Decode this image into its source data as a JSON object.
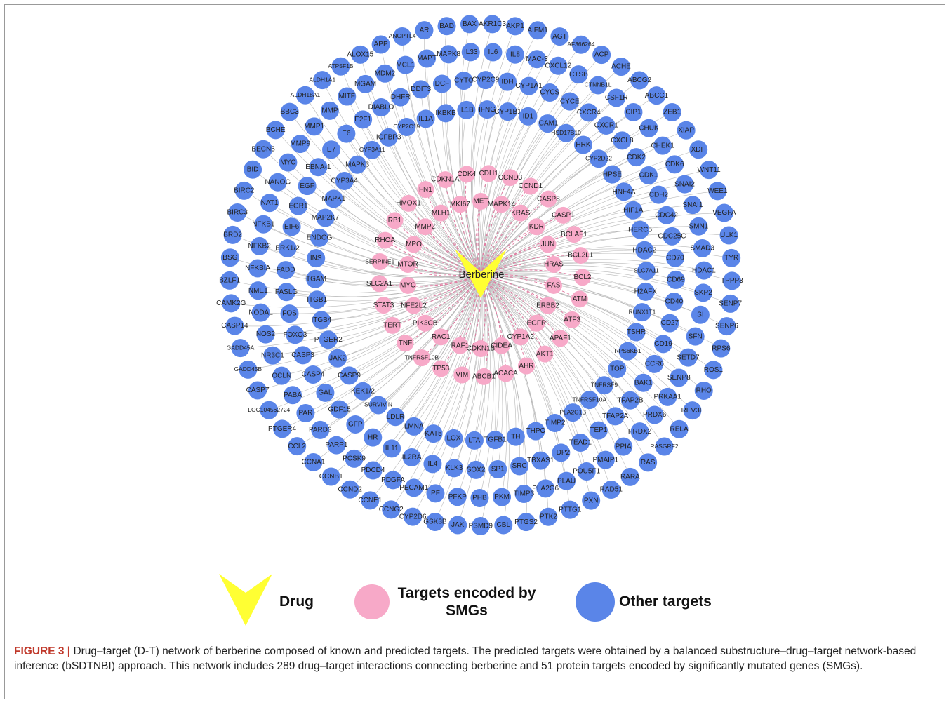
{
  "network": {
    "drug": "Berberine",
    "smg_targets": [
      [
        "CDK4",
        "CDH1",
        "CCND3",
        "CCND1",
        "CASP8",
        "CASP1",
        "BCLAF1",
        "BCL2L1",
        "BCL2",
        "ATM",
        "ATF3",
        "APAF1",
        "AKT1",
        "AHR",
        "ACACA",
        "ABCB1",
        "VIM",
        "TP53",
        "TNFRSF10B",
        "TNF",
        "TERT",
        "STAT3",
        "SLC2A1",
        "SERPINE1",
        "RHOA",
        "RB1",
        "HMOX1",
        "FN1",
        "CDKN1A"
      ],
      [
        "MET",
        "MAPK14",
        "KRAS",
        "KDR",
        "JUN",
        "HRAS",
        "FAS",
        "ERBB2",
        "EGFR",
        "CYP1A2",
        "CIDEA",
        "CDKN1B",
        "RAF1",
        "RAC1",
        "PIK3CB",
        "NFE2L2",
        "MYC",
        "MTOR",
        "MPO",
        "MMP2",
        "MLH1",
        "MKI67"
      ]
    ],
    "other_targets": [
      [
        "AR",
        "BAD",
        "BAX",
        "AKR1C3",
        "AKP1",
        "AIFM1",
        "AGT",
        "AF366264",
        "ACP",
        "ACHE",
        "ABCG2",
        "ABCC1",
        "ZEB1",
        "XIAP",
        "XDH",
        "WNT11",
        "WEE1",
        "VEGFA",
        "ULK1",
        "TYR",
        "TPPP3",
        "SENP7",
        "SENP6",
        "RPS6",
        "ROS1",
        "RHO",
        "REV3L",
        "RELA",
        "RASGRF2",
        "RAS",
        "RARA",
        "RAD51",
        "PXN",
        "PTTG1",
        "PTK2",
        "PTGS2",
        "CBL",
        "PSMD9",
        "JAK",
        "GSK3B",
        "CYP2D6",
        "CCNG2",
        "CCNE1",
        "CCND2",
        "CCNB1",
        "CCNA1",
        "CCL2",
        "PTGER4",
        "LOC104562724",
        "CASP7",
        "GADD45B",
        "GADD45A",
        "CASP14",
        "CAMK2G",
        "BZLF1",
        "BSG",
        "BRD2",
        "BIRC3",
        "BIRC2",
        "BID",
        "BECN5",
        "BCHE",
        "BBC3",
        "ALDH18A1",
        "ALDH1A1",
        "ATP5F1B",
        "ALOX15",
        "APP",
        "ANGPTL4"
      ],
      [
        "MAPT",
        "MAPK8",
        "IL33",
        "IL6",
        "IL8",
        "MAC-3",
        "CXCL12",
        "CTSB",
        "CTNNB1L",
        "CSF1R",
        "CIP1",
        "CHUK",
        "CHEK1",
        "CDK6",
        "SNAI2",
        "SNAI1",
        "SMN1",
        "SMAD3",
        "HDAC1",
        "SKP2",
        "SI",
        "SFN",
        "SETD7",
        "SENP8",
        "PRKAA1",
        "PRDX6",
        "PRDX2",
        "PPIA",
        "PMAIP1",
        "POU5F1",
        "PLAU",
        "PLA2G6",
        "TIMP3",
        "PKM",
        "PHB",
        "PFKP",
        "PF",
        "PECAM1",
        "PDGFA",
        "PDCD4",
        "PCSK9",
        "PARP1",
        "PARD3",
        "PAR",
        "PABA",
        "OCLN",
        "NR3C1",
        "NOS2",
        "NODAL",
        "NME1",
        "NFKBIA",
        "NFKB2",
        "NFKB1",
        "NAT1",
        "NANOG",
        "MYC",
        "MMP9",
        "MMP1",
        "MMP",
        "MITF",
        "MGAM",
        "MDM2",
        "MCL1"
      ],
      [
        "CYTC",
        "CYP2C9",
        "IDH",
        "CYP1A1",
        "CYCS",
        "CYCE",
        "CXCR4",
        "CXCR1",
        "CXCL8",
        "CDK2",
        "CDK1",
        "CDH2",
        "CDC42",
        "CDC25C",
        "CD70",
        "CD69",
        "CD40",
        "CD27",
        "CD19",
        "CCR6",
        "BAK1",
        "TFAP2B",
        "TFAP2A",
        "TEP1",
        "TEAD1",
        "TDP2",
        "TBXAS1",
        "SRC",
        "SP1",
        "SOX2",
        "KLK3",
        "IL4",
        "IL2RA",
        "IL11",
        "HR",
        "GFP",
        "GDF15",
        "GAL",
        "CASP4",
        "CASP3",
        "FOXO3",
        "FOS",
        "FASLG",
        "FADD",
        "ERK1/2",
        "EIF6",
        "EGR1",
        "EGF",
        "EBNA-1",
        "E7",
        "E6",
        "E2F1",
        "DIABLO",
        "DHFR",
        "DDIT3",
        "DCF"
      ],
      [
        "IL1B",
        "IFNG",
        "CYP1B1",
        "ID1",
        "ICAM1",
        "HSD17B10",
        "HRK",
        "CYP2D22",
        "HPSE",
        "HNF4A",
        "HIF1A",
        "HERC5",
        "HDAC2",
        "SLC7A11",
        "H2AFX",
        "RUNX1T1",
        "TSHR",
        "RPS6KB1",
        "TOP",
        "TNFRSF9",
        "TNFRSF10A",
        "PLA2G1B",
        "TIMP2",
        "THPO",
        "TH",
        "TGFB1",
        "LTA",
        "LOX",
        "KAT5",
        "LMNA",
        "LDLR",
        "SURVIVIN",
        "KEK1/2",
        "CASP9",
        "JAK2",
        "PTGER2",
        "ITGB4",
        "ITGB1",
        "ITGAM",
        "INS",
        "ENDOG",
        "MAP2K7",
        "MAPK1",
        "CYP3A4",
        "MAPK3",
        "CYP3A11",
        "IGFBP3",
        "CYP2C19",
        "IL1A",
        "IKBKB"
      ]
    ]
  },
  "legend": [
    "Drug",
    "Targets encoded by SMGs",
    "Other targets"
  ],
  "caption": {
    "label": "FIGURE 3 |",
    "text": "Drug–target (D-T) network of berberine composed of known and predicted targets. The predicted targets were obtained by a balanced substructure–drug–target network-based inference (bSDTNBI) approach. This network includes 289 drug–target interactions connecting berberine and 51 protein targets encoded by significantly mutated genes (SMGs)."
  }
}
